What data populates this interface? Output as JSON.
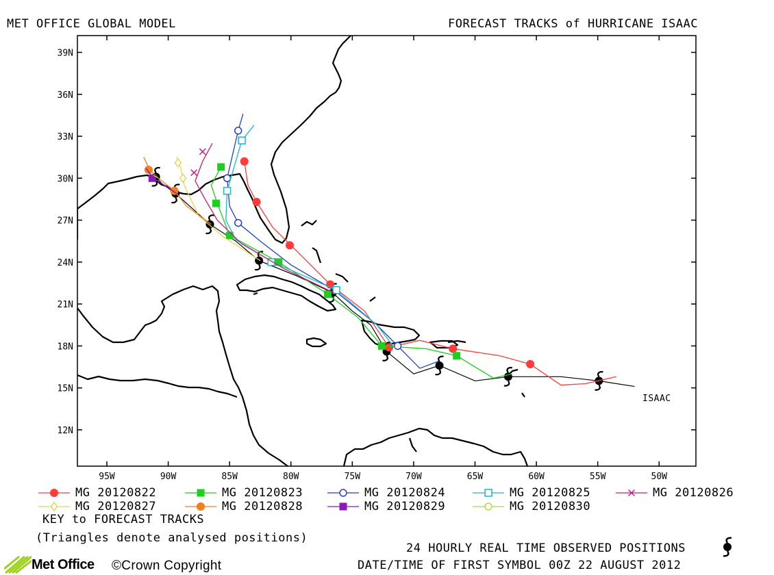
{
  "header": {
    "model": "MET OFFICE GLOBAL MODEL",
    "title": "FORECAST TRACKS of HURRICANE ISAAC"
  },
  "storm_label": "ISAAC",
  "lat_labels": [
    "39N",
    "36N",
    "33N",
    "30N",
    "27N",
    "24N",
    "21N",
    "18N",
    "15N",
    "12N"
  ],
  "lon_labels": [
    "95W",
    "90W",
    "85W",
    "80W",
    "75W",
    "70W",
    "65W",
    "60W",
    "55W",
    "50W"
  ],
  "legend": {
    "items": [
      {
        "label": "MG 20120822",
        "color": "#ff3b3b",
        "symbol": "filled-circle"
      },
      {
        "label": "MG 20120823",
        "color": "#1fcf1f",
        "symbol": "filled-square"
      },
      {
        "label": "MG 20120824",
        "color": "#1f3fcf",
        "symbol": "open-circle"
      },
      {
        "label": "MG 20120825",
        "color": "#19b8c8",
        "symbol": "open-square"
      },
      {
        "label": "MG 20120826",
        "color": "#c8197a",
        "symbol": "cross"
      },
      {
        "label": "MG 20120827",
        "color": "#e0d85a",
        "symbol": "open-diamond"
      },
      {
        "label": "MG 20120828",
        "color": "#f07f1f",
        "symbol": "filled-circle"
      },
      {
        "label": "MG 20120829",
        "color": "#8a19b8",
        "symbol": "filled-square"
      },
      {
        "label": "MG 20120830",
        "color": "#b4d83a",
        "symbol": "open-circle"
      }
    ],
    "key_title": "KEY to FORECAST TRACKS",
    "note": "(Triangles denote analysed positions)"
  },
  "footer": {
    "observed": "24 HOURLY REAL TIME OBSERVED POSITIONS",
    "first_symbol": "DATE/TIME OF FIRST SYMBOL 00Z 22 AUGUST 2012",
    "logo_text": "Met Office",
    "copyright": "©Crown Copyright"
  },
  "chart_data": {
    "type": "map-tracks",
    "extent": {
      "lon_w": 97.4,
      "lon_e": 47.0,
      "lat_s": 9.4,
      "lat_n": 40.2
    },
    "observed": [
      [
        54.9,
        15.5
      ],
      [
        62.3,
        15.8
      ],
      [
        67.9,
        16.6
      ],
      [
        72.2,
        17.6
      ],
      [
        76.6,
        21.8
      ],
      [
        82.6,
        24.1
      ],
      [
        86.6,
        26.7
      ],
      [
        89.4,
        28.9
      ],
      [
        91.0,
        30.1
      ]
    ],
    "observed_line": [
      [
        52.0,
        15.1
      ],
      [
        54.9,
        15.5
      ],
      [
        58.0,
        15.8
      ],
      [
        62.3,
        15.8
      ],
      [
        65.0,
        15.5
      ],
      [
        67.9,
        16.6
      ],
      [
        70.0,
        16.0
      ],
      [
        72.2,
        17.6
      ],
      [
        73.5,
        19.5
      ],
      [
        75.0,
        20.5
      ],
      [
        76.6,
        21.8
      ],
      [
        79.5,
        23.0
      ],
      [
        82.6,
        24.1
      ],
      [
        84.5,
        25.5
      ],
      [
        86.6,
        26.7
      ],
      [
        88.5,
        28.2
      ],
      [
        89.4,
        28.9
      ],
      [
        90.5,
        29.6
      ],
      [
        91.0,
        30.1
      ]
    ],
    "tracks": [
      {
        "name": "MG 20120822",
        "color": "#ff3b3b",
        "symbol": "filled-circle",
        "line": [
          [
            53.5,
            15.8
          ],
          [
            56.0,
            15.3
          ],
          [
            58.0,
            15.2
          ],
          [
            60.5,
            16.7
          ],
          [
            63.0,
            17.3
          ],
          [
            66.8,
            17.8
          ],
          [
            69.5,
            18.4
          ],
          [
            72.0,
            17.9
          ],
          [
            74.0,
            20.5
          ],
          [
            76.8,
            22.4
          ],
          [
            80.0,
            25.2
          ],
          [
            81.5,
            26.5
          ],
          [
            82.8,
            28.3
          ],
          [
            83.5,
            29.5
          ],
          [
            83.8,
            31.2
          ]
        ],
        "points": [
          [
            60.5,
            16.7
          ],
          [
            66.8,
            17.8
          ],
          [
            72.0,
            17.9
          ],
          [
            76.8,
            22.4
          ],
          [
            80.1,
            25.2
          ],
          [
            82.8,
            28.3
          ],
          [
            83.8,
            31.2
          ]
        ]
      },
      {
        "name": "MG 20120823",
        "color": "#1fcf1f",
        "symbol": "filled-square",
        "line": [
          [
            62.0,
            16.0
          ],
          [
            63.5,
            15.7
          ],
          [
            66.5,
            17.3
          ],
          [
            69.0,
            17.8
          ],
          [
            72.6,
            18.0
          ],
          [
            74.5,
            20.0
          ],
          [
            77.0,
            21.7
          ],
          [
            81.0,
            24.0
          ],
          [
            85.0,
            25.9
          ],
          [
            86.0,
            28.2
          ],
          [
            86.5,
            29.5
          ],
          [
            85.7,
            30.8
          ]
        ],
        "points": [
          [
            66.5,
            17.3
          ],
          [
            72.6,
            18.0
          ],
          [
            77.0,
            21.7
          ],
          [
            81.0,
            24.0
          ],
          [
            85.0,
            25.9
          ],
          [
            86.1,
            28.2
          ],
          [
            85.7,
            30.8
          ]
        ]
      },
      {
        "name": "MG 20120824",
        "color": "#1f3fcf",
        "symbol": "open-circle",
        "line": [
          [
            68.0,
            16.9
          ],
          [
            69.5,
            16.4
          ],
          [
            71.3,
            18.0
          ],
          [
            73.0,
            19.5
          ],
          [
            76.5,
            22.0
          ],
          [
            80.0,
            23.8
          ],
          [
            82.5,
            25.5
          ],
          [
            84.3,
            26.8
          ],
          [
            85.0,
            28.0
          ],
          [
            85.2,
            30.0
          ],
          [
            84.3,
            33.4
          ],
          [
            83.9,
            34.6
          ]
        ],
        "points": [
          [
            71.3,
            18.0
          ],
          [
            84.3,
            26.8
          ],
          [
            85.2,
            30.0
          ],
          [
            84.3,
            33.4
          ]
        ]
      },
      {
        "name": "MG 20120825",
        "color": "#19b8c8",
        "symbol": "open-square",
        "line": [
          [
            71.5,
            17.8
          ],
          [
            73.0,
            19.5
          ],
          [
            76.3,
            22.0
          ],
          [
            81.5,
            24.0
          ],
          [
            84.5,
            25.6
          ],
          [
            85.3,
            27.0
          ],
          [
            85.2,
            29.1
          ],
          [
            84.0,
            32.7
          ],
          [
            83.0,
            33.8
          ]
        ],
        "points": [
          [
            76.3,
            22.0
          ],
          [
            81.6,
            24.0
          ],
          [
            85.2,
            29.1
          ],
          [
            84.0,
            32.7
          ]
        ]
      },
      {
        "name": "MG 20120826",
        "color": "#c8197a",
        "symbol": "cross",
        "line": [
          [
            76.5,
            21.8
          ],
          [
            80.5,
            23.5
          ],
          [
            84.0,
            25.3
          ],
          [
            86.0,
            27.0
          ],
          [
            87.0,
            28.5
          ],
          [
            87.8,
            29.8
          ],
          [
            87.2,
            31.2
          ],
          [
            86.4,
            32.5
          ]
        ],
        "points": [
          [
            87.9,
            30.4
          ],
          [
            87.2,
            31.9
          ]
        ]
      },
      {
        "name": "MG 20120827",
        "color": "#e0d85a",
        "symbol": "open-diamond",
        "line": [
          [
            82.5,
            24.1
          ],
          [
            85.5,
            25.8
          ],
          [
            87.5,
            27.3
          ],
          [
            88.7,
            29.5
          ],
          [
            89.0,
            30.8
          ],
          [
            89.3,
            31.5
          ]
        ],
        "points": [
          [
            88.8,
            30.0
          ],
          [
            89.2,
            31.1
          ]
        ]
      },
      {
        "name": "MG 20120828",
        "color": "#f07f1f",
        "symbol": "filled-circle",
        "line": [
          [
            86.5,
            26.7
          ],
          [
            88.5,
            28.0
          ],
          [
            89.5,
            29.1
          ],
          [
            90.8,
            30.0
          ],
          [
            91.5,
            30.6
          ],
          [
            92.0,
            31.5
          ]
        ],
        "points": [
          [
            89.5,
            29.1
          ],
          [
            91.6,
            30.6
          ]
        ]
      },
      {
        "name": "MG 20120829",
        "color": "#8a19b8",
        "symbol": "filled-square",
        "line": [
          [
            89.3,
            28.9
          ],
          [
            90.5,
            29.6
          ],
          [
            91.2,
            30.0
          ],
          [
            91.8,
            30.7
          ]
        ],
        "points": [
          [
            91.3,
            30.0
          ]
        ]
      },
      {
        "name": "MG 20120830",
        "color": "#b4d83a",
        "symbol": "open-circle",
        "line": [
          [
            90.8,
            30.0
          ],
          [
            91.2,
            30.2
          ]
        ],
        "points": []
      }
    ]
  }
}
